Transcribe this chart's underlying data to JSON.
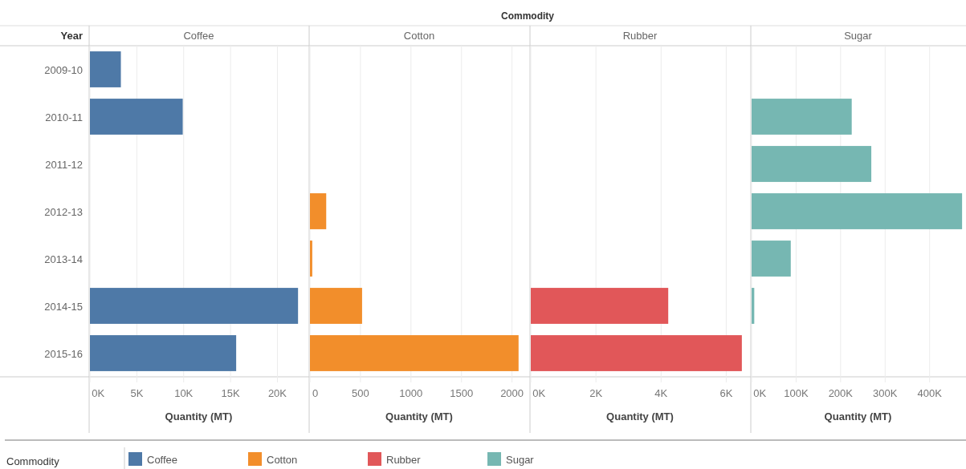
{
  "chart_data": [
    {
      "type": "bar",
      "orientation": "horizontal",
      "title": "Coffee",
      "ylabel": "Year",
      "xlabel": "Quantity (MT)",
      "legend_title": "Commodity",
      "annotations": [
        "Commodity"
      ],
      "legend": "bottom",
      "grid": "x",
      "categories": [
        "2009-10",
        "2010-11",
        "2011-12",
        "2012-13",
        "2013-14",
        "2014-15",
        "2015-16"
      ],
      "series": [
        {
          "name": "Coffee",
          "color": "#4e79a7",
          "values": [
            3300,
            9900,
            null,
            null,
            null,
            22200,
            15600
          ]
        }
      ],
      "xlim": [
        0,
        23300
      ],
      "xticks": [
        {
          "value": 0,
          "label": "0K"
        },
        {
          "value": 5000,
          "label": "5K"
        },
        {
          "value": 10000,
          "label": "10K"
        },
        {
          "value": 15000,
          "label": "15K"
        },
        {
          "value": 20000,
          "label": "20K"
        }
      ]
    },
    {
      "type": "bar",
      "orientation": "horizontal",
      "title": "Cotton",
      "xlabel": "Quantity (MT)",
      "legend": "bottom",
      "grid": "x",
      "tick_labels": "x",
      "categories": [
        "2009-10",
        "2010-11",
        "2011-12",
        "2012-13",
        "2013-14",
        "2014-15",
        "2015-16"
      ],
      "series": [
        {
          "name": "Cotton",
          "color": "#f28e2b",
          "values": [
            null,
            null,
            null,
            161,
            23,
            516,
            2065
          ]
        }
      ],
      "xlim": [
        0,
        2170
      ],
      "xticks": [
        0,
        500,
        1000,
        1500,
        2000
      ]
    },
    {
      "type": "bar",
      "orientation": "horizontal",
      "title": "Rubber",
      "xlabel": "Quantity (MT)",
      "legend": "bottom",
      "grid": "x",
      "tick_labels": "x",
      "categories": [
        "2009-10",
        "2010-11",
        "2011-12",
        "2012-13",
        "2013-14",
        "2014-15",
        "2015-16"
      ],
      "series": [
        {
          "name": "Rubber",
          "color": "#e15759",
          "values": [
            null,
            null,
            null,
            null,
            null,
            4220,
            6480
          ]
        }
      ],
      "xlim": [
        0,
        6730
      ],
      "xticks": [
        {
          "value": 0,
          "label": "0K"
        },
        {
          "value": 2000,
          "label": "2K"
        },
        {
          "value": 4000,
          "label": "4K"
        },
        {
          "value": 6000,
          "label": "6K"
        }
      ]
    },
    {
      "type": "bar",
      "orientation": "horizontal",
      "title": "Sugar",
      "xlabel": "Quantity (MT)",
      "legend": "bottom",
      "grid": "x",
      "tick_labels": "x",
      "categories": [
        "2009-10",
        "2010-11",
        "2011-12",
        "2012-13",
        "2013-14",
        "2014-15",
        "2015-16"
      ],
      "series": [
        {
          "name": "Sugar",
          "color": "#76b7b2",
          "values": [
            null,
            225000,
            269000,
            473000,
            88000,
            6000,
            null
          ]
        }
      ],
      "xlim": [
        0,
        480000
      ],
      "xticks": [
        {
          "value": 0,
          "label": "0K"
        },
        {
          "value": 100000,
          "label": "100K"
        },
        {
          "value": 200000,
          "label": "200K"
        },
        {
          "value": 300000,
          "label": "300K"
        },
        {
          "value": 400000,
          "label": "400K"
        }
      ]
    }
  ]
}
